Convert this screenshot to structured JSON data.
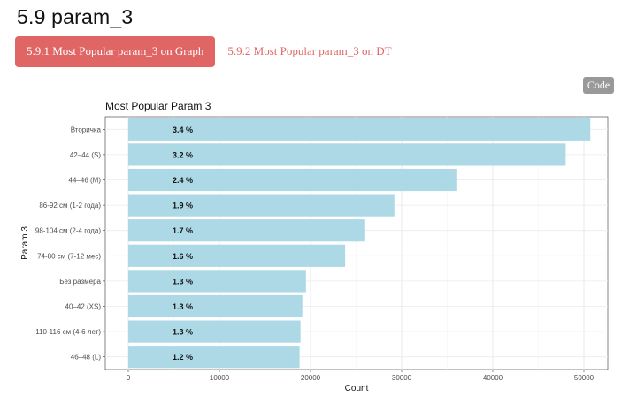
{
  "section": {
    "heading": "5.9 param_3"
  },
  "tabs": [
    {
      "label": "5.9.1 Most Popular param_3 on Graph",
      "active": true
    },
    {
      "label": "5.9.2 Most Popular param_3 on DT",
      "active": false
    }
  ],
  "code_button": {
    "label": "Code"
  },
  "colors": {
    "tab_accent": "#e06666",
    "bar_fill": "#add8e6",
    "code_button": "#999999"
  },
  "chart_data": {
    "type": "bar",
    "orientation": "horizontal",
    "title": "Most Popular Param 3",
    "xlabel": "Count",
    "ylabel": "Param 3",
    "xlim": [
      0,
      52500
    ],
    "xticks": [
      0,
      10000,
      20000,
      30000,
      40000,
      50000
    ],
    "xtick_labels": [
      "0",
      "10000",
      "20000",
      "30000",
      "40000",
      "50000"
    ],
    "grid": true,
    "categories": [
      "Вторичка",
      "42–44 (S)",
      "44–46 (M)",
      "86-92 см (1-2 года)",
      "98-104 см (2-4 года)",
      "74-80 см (7-12 мес)",
      "Без размера",
      "40–42 (XS)",
      "110-116 см (4-6 лет)",
      "46–48 (L)"
    ],
    "values": [
      50700,
      48000,
      36000,
      29200,
      25900,
      23800,
      19500,
      19100,
      18900,
      18800
    ],
    "data_labels": [
      "3.4 %",
      "3.2 %",
      "2.4 %",
      "1.9 %",
      "1.7 %",
      "1.6 %",
      "1.3 %",
      "1.3 %",
      "1.3 %",
      "1.2 %"
    ]
  }
}
